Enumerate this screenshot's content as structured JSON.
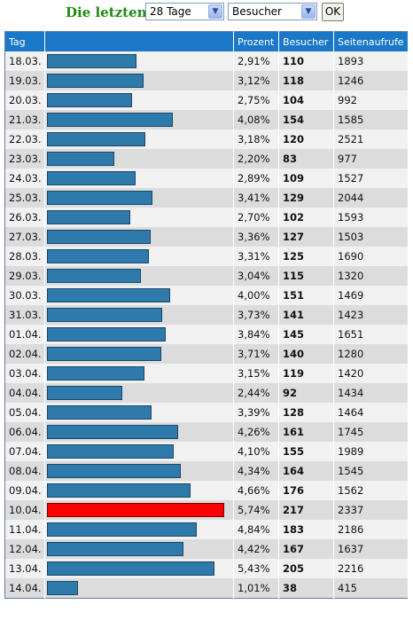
{
  "filter": {
    "label": "Die letzten:",
    "period": "28 Tage",
    "metric": "Besucher",
    "ok": "OK",
    "arrow_icon": "chevron-down-icon"
  },
  "colors": {
    "bar": "#2e7aab",
    "bar_max": "#ff0000",
    "header": "#1b78c8",
    "label_green": "#1f8a12"
  },
  "table": {
    "columns": [
      "Tag",
      "",
      "Prozent",
      "Besucher",
      "Seitenaufrufe"
    ],
    "rows": [
      {
        "tag": "18.03.",
        "prozent": "2,91%",
        "besucher": "110",
        "seitenaufrufe": "1893"
      },
      {
        "tag": "19.03.",
        "prozent": "3,12%",
        "besucher": "118",
        "seitenaufrufe": "1246"
      },
      {
        "tag": "20.03.",
        "prozent": "2,75%",
        "besucher": "104",
        "seitenaufrufe": "992"
      },
      {
        "tag": "21.03.",
        "prozent": "4,08%",
        "besucher": "154",
        "seitenaufrufe": "1585"
      },
      {
        "tag": "22.03.",
        "prozent": "3,18%",
        "besucher": "120",
        "seitenaufrufe": "2521"
      },
      {
        "tag": "23.03.",
        "prozent": "2,20%",
        "besucher": "83",
        "seitenaufrufe": "977"
      },
      {
        "tag": "24.03.",
        "prozent": "2,89%",
        "besucher": "109",
        "seitenaufrufe": "1527"
      },
      {
        "tag": "25.03.",
        "prozent": "3,41%",
        "besucher": "129",
        "seitenaufrufe": "2044"
      },
      {
        "tag": "26.03.",
        "prozent": "2,70%",
        "besucher": "102",
        "seitenaufrufe": "1593"
      },
      {
        "tag": "27.03.",
        "prozent": "3,36%",
        "besucher": "127",
        "seitenaufrufe": "1503"
      },
      {
        "tag": "28.03.",
        "prozent": "3,31%",
        "besucher": "125",
        "seitenaufrufe": "1690"
      },
      {
        "tag": "29.03.",
        "prozent": "3,04%",
        "besucher": "115",
        "seitenaufrufe": "1320"
      },
      {
        "tag": "30.03.",
        "prozent": "4,00%",
        "besucher": "151",
        "seitenaufrufe": "1469"
      },
      {
        "tag": "31.03.",
        "prozent": "3,73%",
        "besucher": "141",
        "seitenaufrufe": "1423"
      },
      {
        "tag": "01.04.",
        "prozent": "3,84%",
        "besucher": "145",
        "seitenaufrufe": "1651"
      },
      {
        "tag": "02.04.",
        "prozent": "3,71%",
        "besucher": "140",
        "seitenaufrufe": "1280"
      },
      {
        "tag": "03.04.",
        "prozent": "3,15%",
        "besucher": "119",
        "seitenaufrufe": "1420"
      },
      {
        "tag": "04.04.",
        "prozent": "2,44%",
        "besucher": "92",
        "seitenaufrufe": "1434"
      },
      {
        "tag": "05.04.",
        "prozent": "3,39%",
        "besucher": "128",
        "seitenaufrufe": "1464"
      },
      {
        "tag": "06.04.",
        "prozent": "4,26%",
        "besucher": "161",
        "seitenaufrufe": "1745"
      },
      {
        "tag": "07.04.",
        "prozent": "4,10%",
        "besucher": "155",
        "seitenaufrufe": "1989"
      },
      {
        "tag": "08.04.",
        "prozent": "4,34%",
        "besucher": "164",
        "seitenaufrufe": "1545"
      },
      {
        "tag": "09.04.",
        "prozent": "4,66%",
        "besucher": "176",
        "seitenaufrufe": "1562"
      },
      {
        "tag": "10.04.",
        "prozent": "5,74%",
        "besucher": "217",
        "seitenaufrufe": "2337"
      },
      {
        "tag": "11.04.",
        "prozent": "4,84%",
        "besucher": "183",
        "seitenaufrufe": "2186"
      },
      {
        "tag": "12.04.",
        "prozent": "4,42%",
        "besucher": "167",
        "seitenaufrufe": "1637"
      },
      {
        "tag": "13.04.",
        "prozent": "5,43%",
        "besucher": "205",
        "seitenaufrufe": "2216"
      },
      {
        "tag": "14.04.",
        "prozent": "1,01%",
        "besucher": "38",
        "seitenaufrufe": "415"
      }
    ]
  }
}
